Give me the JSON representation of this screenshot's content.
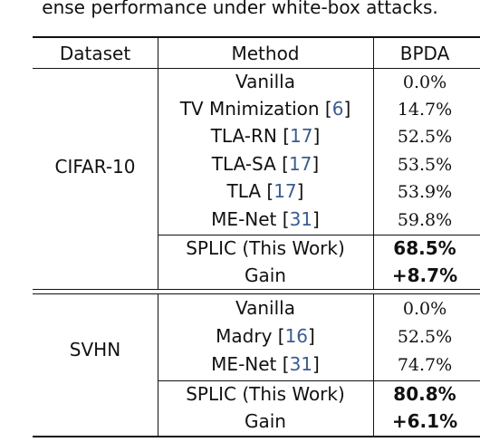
{
  "caption": "ense performance under white-box attacks.",
  "headers": {
    "dataset": "Dataset",
    "method": "Method",
    "bpda": "BPDA"
  },
  "groups": [
    {
      "dataset": "CIFAR-10",
      "rows": [
        {
          "method": "Vanilla",
          "cite": "",
          "value": "0.0%"
        },
        {
          "method": "TV Mnimization [",
          "cite": "6",
          "close": "]",
          "value": "14.7%"
        },
        {
          "method": "TLA-RN [",
          "cite": "17",
          "close": "]",
          "value": "52.5%"
        },
        {
          "method": "TLA-SA [",
          "cite": "17",
          "close": "]",
          "value": "53.5%"
        },
        {
          "method": "TLA [",
          "cite": "17",
          "close": "]",
          "value": "53.9%"
        },
        {
          "method": "ME-Net [",
          "cite": "31",
          "close": "]",
          "value": "59.8%"
        },
        {
          "method": "SPLIC (This Work)",
          "cite": "",
          "value": "68.5%"
        },
        {
          "method": "Gain",
          "cite": "",
          "value": "+8.7%"
        }
      ]
    },
    {
      "dataset": "SVHN",
      "rows": [
        {
          "method": "Vanilla",
          "cite": "",
          "value": "0.0%"
        },
        {
          "method": "Madry [",
          "cite": "16",
          "close": "]",
          "value": "52.5%"
        },
        {
          "method": "ME-Net [",
          "cite": "31",
          "close": "]",
          "value": "74.7%"
        },
        {
          "method": "SPLIC (This Work)",
          "cite": "",
          "value": "80.8%"
        },
        {
          "method": "Gain",
          "cite": "",
          "value": "+6.1%"
        }
      ]
    }
  ]
}
